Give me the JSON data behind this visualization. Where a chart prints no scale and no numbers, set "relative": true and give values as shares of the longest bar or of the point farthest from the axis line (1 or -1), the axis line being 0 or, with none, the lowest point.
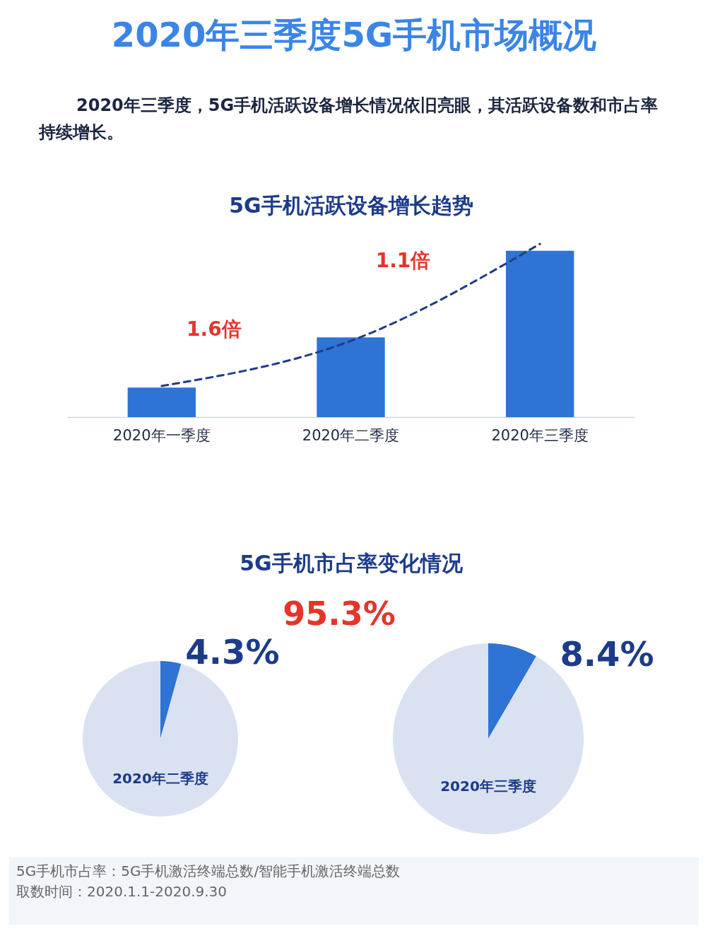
{
  "chart_data": [
    {
      "type": "other",
      "title": "2020年三季度5G手机市场概况",
      "subtitle": "2020年三季度，5G手机活跃设备增长情况依旧亮眼，其活跃设备数和市占率持续增长。"
    },
    {
      "type": "bar",
      "title": "5G手机活跃设备增长趋势",
      "categories": [
        "2020年一季度",
        "2020年二季度",
        "2020年三季度"
      ],
      "relative": true,
      "series": [
        {
          "type": "bar",
          "color": "#2f73d5",
          "values": [
            0.17,
            0.46,
            0.96
          ]
        },
        {
          "type": "line",
          "color": "#1f3d85",
          "line_style": "dashed",
          "values": [
            0.18,
            0.44,
            1
          ]
        }
      ],
      "annotations": [
        "1.6倍",
        "1.1倍"
      ]
    },
    {
      "type": "other",
      "title": "5G手机市占率变化情况",
      "annotations": [
        "95.3%"
      ]
    },
    {
      "type": "pie",
      "title": "2020年二季度",
      "categories": [
        null,
        null
      ],
      "values": [
        4.3,
        95.7
      ],
      "colors": [
        "#2f73d5",
        "#dae2f2"
      ],
      "value_labels": [
        "4.3%",
        null
      ]
    },
    {
      "type": "pie",
      "title": "2020年三季度",
      "categories": [
        null,
        null
      ],
      "values": [
        8.4,
        91.6
      ],
      "colors": [
        "#2f73d5",
        "#dae2f2"
      ],
      "value_labels": [
        "8.4%",
        null
      ]
    },
    {
      "type": "other",
      "annotations": [
        "5G手机市占率：5G手机激活终端总数/智能手机激活终端总数",
        "取数时间：2020.1.1-2020.9.30"
      ]
    }
  ]
}
